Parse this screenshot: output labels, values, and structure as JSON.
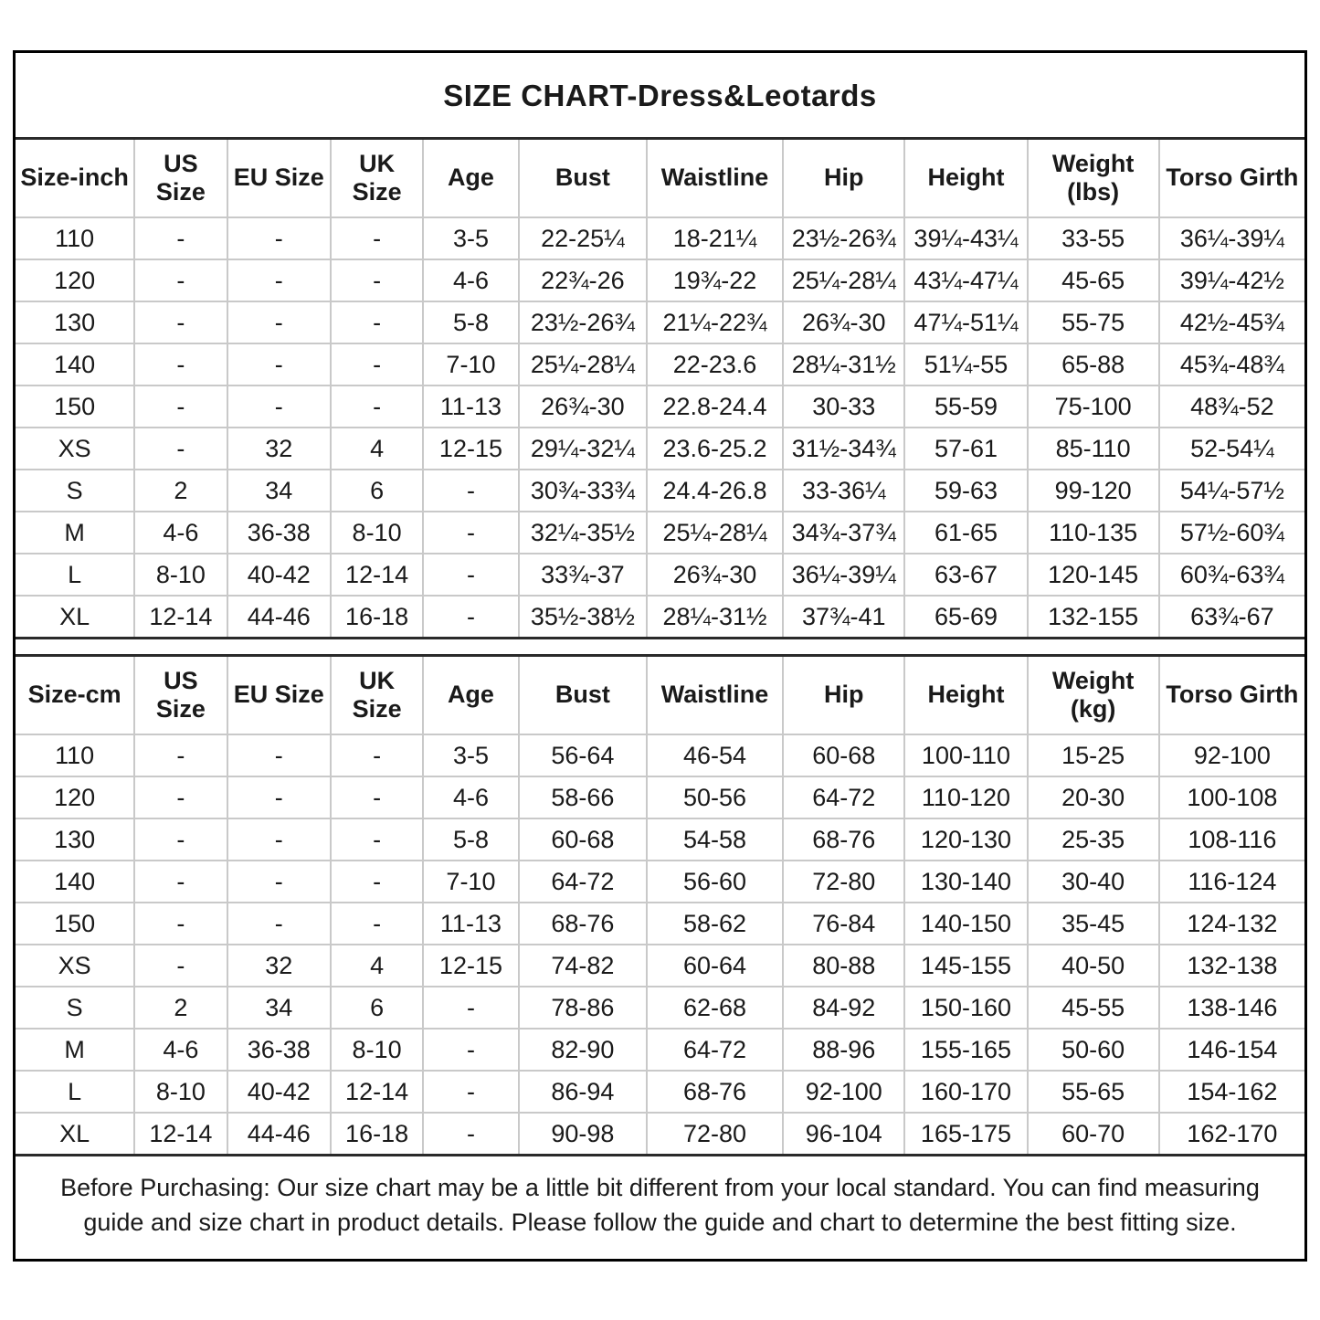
{
  "title": "SIZE CHART-Dress&Leotards",
  "tables": [
    {
      "id": "inch",
      "headers": [
        "Size-inch",
        "US Size",
        "EU Size",
        "UK Size",
        "Age",
        "Bust",
        "Waistline",
        "Hip",
        "Height",
        "Weight (lbs)",
        "Torso Girth"
      ],
      "rows": [
        [
          "110",
          "-",
          "-",
          "-",
          "3-5",
          "22-25¼",
          "18-21¼",
          "23½-26¾",
          "39¼-43¼",
          "33-55",
          "36¼-39¼"
        ],
        [
          "120",
          "-",
          "-",
          "-",
          "4-6",
          "22¾-26",
          "19¾-22",
          "25¼-28¼",
          "43¼-47¼",
          "45-65",
          "39¼-42½"
        ],
        [
          "130",
          "-",
          "-",
          "-",
          "5-8",
          "23½-26¾",
          "21¼-22¾",
          "26¾-30",
          "47¼-51¼",
          "55-75",
          "42½-45¾"
        ],
        [
          "140",
          "-",
          "-",
          "-",
          "7-10",
          "25¼-28¼",
          "22-23.6",
          "28¼-31½",
          "51¼-55",
          "65-88",
          "45¾-48¾"
        ],
        [
          "150",
          "-",
          "-",
          "-",
          "11-13",
          "26¾-30",
          "22.8-24.4",
          "30-33",
          "55-59",
          "75-100",
          "48¾-52"
        ],
        [
          "XS",
          "-",
          "32",
          "4",
          "12-15",
          "29¼-32¼",
          "23.6-25.2",
          "31½-34¾",
          "57-61",
          "85-110",
          "52-54¼"
        ],
        [
          "S",
          "2",
          "34",
          "6",
          "-",
          "30¾-33¾",
          "24.4-26.8",
          "33-36¼",
          "59-63",
          "99-120",
          "54¼-57½"
        ],
        [
          "M",
          "4-6",
          "36-38",
          "8-10",
          "-",
          "32¼-35½",
          "25¼-28¼",
          "34¾-37¾",
          "61-65",
          "110-135",
          "57½-60¾"
        ],
        [
          "L",
          "8-10",
          "40-42",
          "12-14",
          "-",
          "33¾-37",
          "26¾-30",
          "36¼-39¼",
          "63-67",
          "120-145",
          "60¾-63¾"
        ],
        [
          "XL",
          "12-14",
          "44-46",
          "16-18",
          "-",
          "35½-38½",
          "28¼-31½",
          "37¾-41",
          "65-69",
          "132-155",
          "63¾-67"
        ]
      ]
    },
    {
      "id": "cm",
      "headers": [
        "Size-cm",
        "US Size",
        "EU Size",
        "UK Size",
        "Age",
        "Bust",
        "Waistline",
        "Hip",
        "Height",
        "Weight (kg)",
        "Torso Girth"
      ],
      "rows": [
        [
          "110",
          "-",
          "-",
          "-",
          "3-5",
          "56-64",
          "46-54",
          "60-68",
          "100-110",
          "15-25",
          "92-100"
        ],
        [
          "120",
          "-",
          "-",
          "-",
          "4-6",
          "58-66",
          "50-56",
          "64-72",
          "110-120",
          "20-30",
          "100-108"
        ],
        [
          "130",
          "-",
          "-",
          "-",
          "5-8",
          "60-68",
          "54-58",
          "68-76",
          "120-130",
          "25-35",
          "108-116"
        ],
        [
          "140",
          "-",
          "-",
          "-",
          "7-10",
          "64-72",
          "56-60",
          "72-80",
          "130-140",
          "30-40",
          "116-124"
        ],
        [
          "150",
          "-",
          "-",
          "-",
          "11-13",
          "68-76",
          "58-62",
          "76-84",
          "140-150",
          "35-45",
          "124-132"
        ],
        [
          "XS",
          "-",
          "32",
          "4",
          "12-15",
          "74-82",
          "60-64",
          "80-88",
          "145-155",
          "40-50",
          "132-138"
        ],
        [
          "S",
          "2",
          "34",
          "6",
          "-",
          "78-86",
          "62-68",
          "84-92",
          "150-160",
          "45-55",
          "138-146"
        ],
        [
          "M",
          "4-6",
          "36-38",
          "8-10",
          "-",
          "82-90",
          "64-72",
          "88-96",
          "155-165",
          "50-60",
          "146-154"
        ],
        [
          "L",
          "8-10",
          "40-42",
          "12-14",
          "-",
          "86-94",
          "68-76",
          "92-100",
          "160-170",
          "55-65",
          "154-162"
        ],
        [
          "XL",
          "12-14",
          "44-46",
          "16-18",
          "-",
          "90-98",
          "72-80",
          "96-104",
          "165-175",
          "60-70",
          "162-170"
        ]
      ]
    }
  ],
  "footer": "Before Purchasing: Our size chart may be a little bit different from your local standard. You can find measuring guide and size chart in product details. Please follow the guide and chart to determine the best fitting size."
}
